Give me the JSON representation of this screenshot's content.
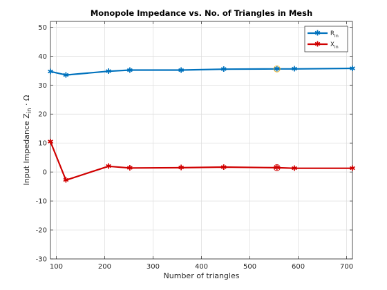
{
  "chart_data": {
    "type": "line",
    "title": "Monopole Impedance vs. No. of Triangles in Mesh",
    "xlabel": "Number of triangles",
    "ylabel": {
      "main": "Input Impedance Z",
      "subscript": "in",
      "suffix": " · Ω"
    },
    "xlim": [
      88,
      712
    ],
    "ylim": [
      -30,
      52
    ],
    "xticks": [
      100,
      200,
      300,
      400,
      500,
      600,
      700
    ],
    "yticks": [
      -30,
      -20,
      -10,
      0,
      10,
      20,
      30,
      40,
      50
    ],
    "grid": true,
    "legend_position": "top-right",
    "series": [
      {
        "name": "R",
        "name_sub": "in",
        "color": "#0072BD",
        "x": [
          88,
          120,
          208,
          252,
          358,
          446,
          556,
          592,
          712
        ],
        "y": [
          34.7,
          33.5,
          34.8,
          35.2,
          35.2,
          35.5,
          35.6,
          35.6,
          35.8
        ]
      },
      {
        "name": "X",
        "name_sub": "in",
        "color": "#D00000",
        "x": [
          88,
          120,
          208,
          252,
          358,
          446,
          556,
          592,
          712
        ],
        "y": [
          10.5,
          -2.8,
          2.0,
          1.4,
          1.5,
          1.7,
          1.5,
          1.3,
          1.3
        ]
      }
    ],
    "annotations": [
      {
        "type": "circle-marker",
        "x": 556,
        "y": 35.6,
        "color": "#EDB120"
      },
      {
        "type": "circle-marker",
        "x": 556,
        "y": 1.5,
        "color": "#D00000"
      }
    ]
  }
}
